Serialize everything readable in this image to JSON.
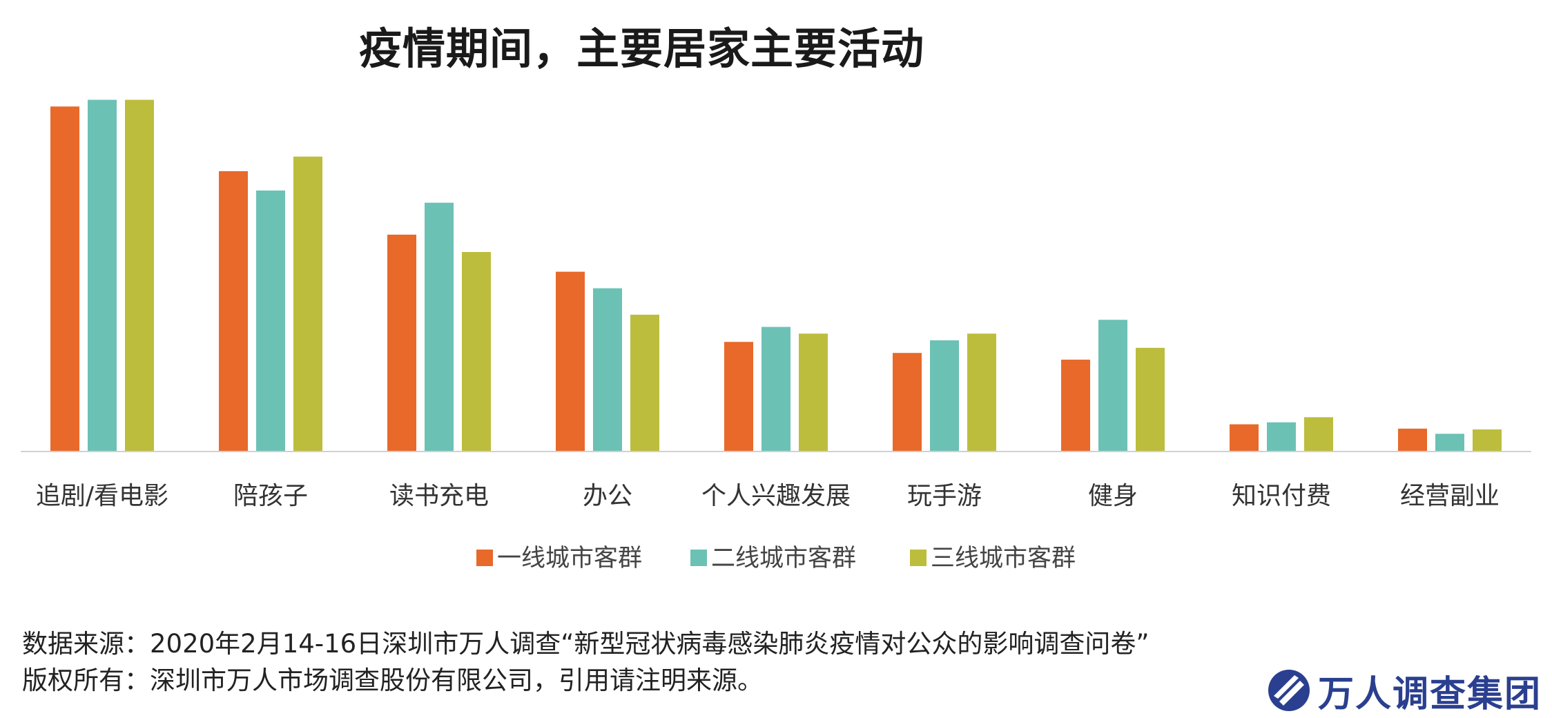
{
  "title": "疫情期间，主要居家主要活动",
  "chart_data": {
    "type": "bar",
    "title": "疫情期间，主要居家主要活动",
    "categories": [
      "追剧/看电影",
      "陪孩子",
      "读书充电",
      "办公",
      "个人兴趣发展",
      "玩手游",
      "健身",
      "知识付费",
      "经营副业"
    ],
    "series": [
      {
        "name": "一线城市客群",
        "color": "#E8692A",
        "values": [
          87.5,
          71.1,
          55.0,
          45.6,
          27.8,
          25.0,
          23.3,
          6.9,
          5.8
        ]
      },
      {
        "name": "二线城市客群",
        "color": "#6CC1B5",
        "values": [
          89.2,
          66.2,
          63.1,
          41.4,
          31.6,
          28.2,
          33.4,
          7.4,
          4.5
        ]
      },
      {
        "name": "三线城市客群",
        "color": "#BCBD3D",
        "values": [
          89.2,
          74.8,
          50.6,
          34.7,
          29.9,
          29.9,
          26.3,
          8.7,
          5.6
        ]
      }
    ],
    "ylim": [
      0,
      90
    ],
    "grid": false,
    "legend_position": "bottom",
    "xlabel": "",
    "ylabel": ""
  },
  "source": {
    "line1": "数据来源：2020年2月14-16日深圳市万人调查“新型冠状病毒感染肺炎疫情对公众的影响调查问卷”",
    "line2": "版权所有：深圳市万人市场调查股份有限公司，引用请注明来源。"
  },
  "logo": {
    "text": "万人调查集团",
    "color": "#2a3f8f"
  }
}
